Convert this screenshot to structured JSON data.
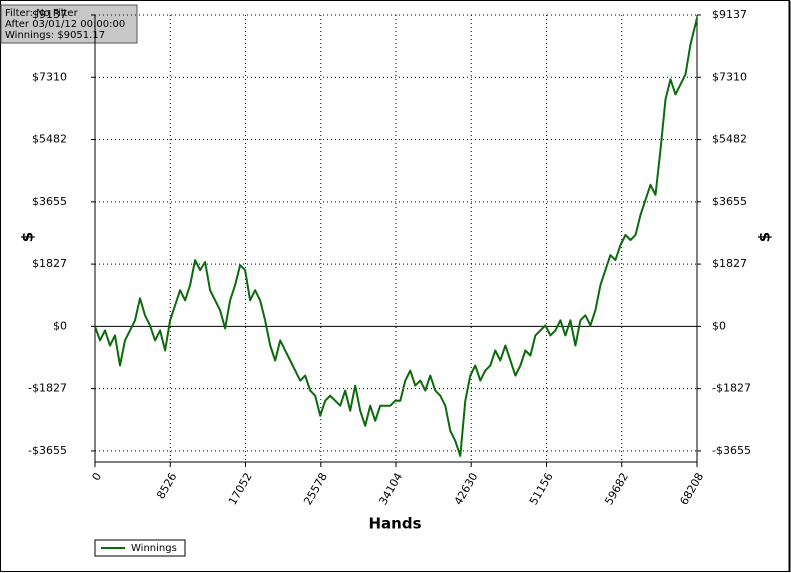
{
  "chart_data": {
    "type": "line",
    "annotations": [
      "Filter: No Filter",
      "After 03/01/12 00:00:00",
      "Winnings: $9051.17"
    ],
    "xlabel": "Hands",
    "ylabel": "$",
    "xlim": [
      0,
      68208
    ],
    "xticks": [
      0,
      8526,
      17052,
      25578,
      34104,
      42630,
      51156,
      59682,
      68208
    ],
    "ylim": [
      -3980,
      9137
    ],
    "yticks": [
      {
        "value": -3655,
        "label": "-$3655"
      },
      {
        "value": -1827,
        "label": "-$1827"
      },
      {
        "value": 0,
        "label": "$0"
      },
      {
        "value": 1827,
        "label": "$1827"
      },
      {
        "value": 3655,
        "label": "$3655"
      },
      {
        "value": 5482,
        "label": "$5482"
      },
      {
        "value": 7310,
        "label": "$7310"
      },
      {
        "value": 9137,
        "label": "$9137"
      }
    ],
    "grid": true,
    "legend": "bottom-left",
    "x": [
      0,
      567,
      1134,
      1701,
      2268,
      2835,
      3402,
      3969,
      4536,
      5103,
      5670,
      6237,
      6804,
      7371,
      7938,
      8505,
      9072,
      9639,
      10206,
      10773,
      11340,
      11907,
      12474,
      13041,
      13608,
      14175,
      14742,
      15309,
      15876,
      16443,
      17010,
      17577,
      18144,
      18711,
      19278,
      19845,
      20412,
      20979,
      22113,
      22680,
      23247,
      23814,
      24381,
      24948,
      25515,
      26082,
      26649,
      27783,
      28350,
      28917,
      29484,
      30051,
      30618,
      31185,
      31752,
      32319,
      33453,
      34020,
      34587,
      35154,
      35721,
      36288,
      36855,
      37422,
      37989,
      38556,
      39123,
      39690,
      40257,
      40824,
      41391,
      41958,
      42525,
      43092,
      43659,
      44226,
      44793,
      45360,
      45927,
      46494,
      47061,
      47628,
      48195,
      48762,
      49329,
      49896,
      50463,
      51030,
      51597,
      52164,
      52731,
      53298,
      53865,
      54432,
      54999,
      55566,
      56133,
      56700,
      57267,
      57834,
      58401,
      58968,
      59535,
      60102,
      60669,
      61236,
      61803,
      62370,
      62937,
      63504,
      64071,
      64638,
      65205,
      65772,
      66339,
      66906,
      67473,
      68040,
      68208
    ],
    "series": [
      {
        "name": "Winnings",
        "color": "#0b6b0b",
        "values": [
          0,
          -413,
          -118,
          -560,
          -265,
          -1149,
          -413,
          -118,
          177,
          825,
          324,
          29,
          -413,
          -118,
          -707,
          177,
          619,
          1061,
          766,
          1208,
          1945,
          1650,
          1886,
          1061,
          766,
          472,
          -59,
          766,
          1208,
          1798,
          1650,
          766,
          1061,
          766,
          177,
          -560,
          -1002,
          -413,
          -1002,
          -1297,
          -1591,
          -1444,
          -1886,
          -2033,
          -2623,
          -2181,
          -2033,
          -2328,
          -1886,
          -2475,
          -1739,
          -2475,
          -2918,
          -2328,
          -2770,
          -2328,
          -2328,
          -2181,
          -2181,
          -1591,
          -1297,
          -1739,
          -1591,
          -1886,
          -1444,
          -1886,
          -2033,
          -2328,
          -3065,
          -3360,
          -3802,
          -2181,
          -1444,
          -1149,
          -1591,
          -1297,
          -1149,
          -707,
          -1002,
          -560,
          -1002,
          -1444,
          -1149,
          -707,
          -855,
          -265,
          -118,
          29,
          -265,
          -118,
          177,
          -265,
          177,
          -560,
          177,
          324,
          29,
          472,
          1208,
          1650,
          2092,
          1945,
          2387,
          2682,
          2534,
          2682,
          3271,
          3713,
          4155,
          3861,
          5187,
          6660,
          7250,
          6808,
          7102,
          7397,
          8281,
          8870,
          9051.17
        ]
      }
    ]
  }
}
